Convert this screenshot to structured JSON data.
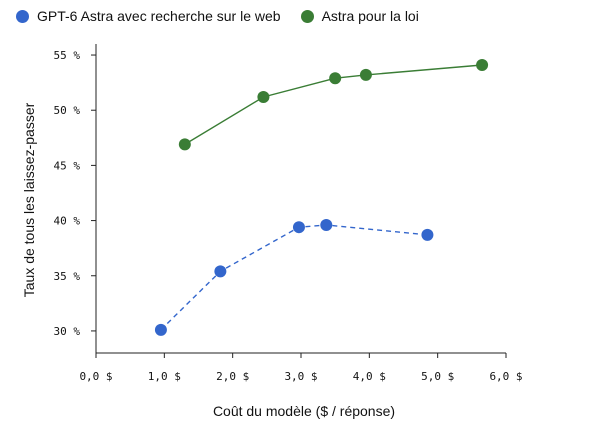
{
  "chart_data": {
    "type": "line",
    "title": "",
    "xlabel": "Coût du modèle ($ / réponse)",
    "ylabel": "Taux de tous les laissez-passer",
    "xlim": [
      0,
      6.0
    ],
    "ylim": [
      28,
      56
    ],
    "x_ticks": [
      0,
      1,
      2,
      3,
      4,
      5,
      6
    ],
    "x_tick_labels": [
      "0,0 $",
      "1,0 $",
      "2,0 $",
      "3,0 $",
      "4,0 $",
      "5,0 $",
      "6,0 $"
    ],
    "y_ticks": [
      30,
      35,
      40,
      45,
      50,
      55
    ],
    "y_tick_labels": [
      "30 %",
      "35 %",
      "40 %",
      "45 %",
      "50 %",
      "55 %"
    ],
    "grid": false,
    "legend_position": "top-left",
    "series": [
      {
        "name": "GPT-6 Astra avec recherche sur le web",
        "color": "#3366cc",
        "line_style": "dashed",
        "x": [
          0.95,
          1.82,
          2.97,
          3.37,
          4.85
        ],
        "y": [
          30.1,
          35.4,
          39.4,
          39.6,
          38.7
        ]
      },
      {
        "name": "Astra pour la loi",
        "color": "#3a7d35",
        "line_style": "solid",
        "x": [
          1.3,
          2.45,
          3.5,
          3.95,
          5.65
        ],
        "y": [
          46.9,
          51.2,
          52.9,
          53.2,
          54.1
        ]
      }
    ]
  }
}
